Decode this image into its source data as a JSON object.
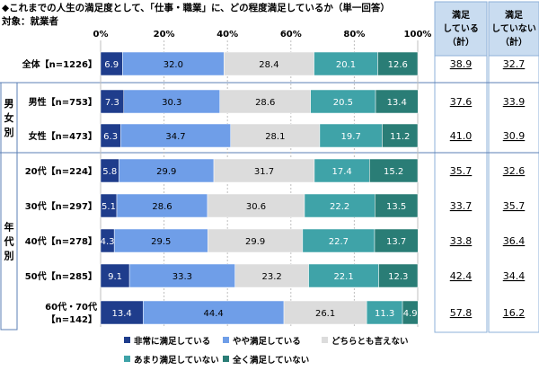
{
  "title": "◆これまでの人生の満足度として、「仕事・職業」に、どの程度満足しているか（単一回答）",
  "subtitle": "対象：就業者",
  "chart_data": {
    "type": "bar",
    "orientation": "horizontal",
    "stacked": true,
    "percent_stacked": true,
    "xlim": [
      0,
      100
    ],
    "x_ticks": [
      "0%",
      "20%",
      "40%",
      "60%",
      "80%",
      "100%"
    ],
    "grid": true,
    "legend_position": "bottom",
    "group_labels": [
      {
        "label": "男女別",
        "rows": [
          1,
          2
        ]
      },
      {
        "label": "年代別",
        "rows": [
          3,
          4,
          5,
          6,
          7
        ]
      }
    ],
    "categories": [
      "全体【n=1226】",
      "男性【n=753】",
      "女性【n=473】",
      "20代【n=224】",
      "30代【n=297】",
      "40代【n=278】",
      "50代【n=285】",
      "60代・70代【n=142】"
    ],
    "series": [
      {
        "name": "非常に満足している",
        "color": "#1f3d8c",
        "values": [
          6.9,
          7.3,
          6.3,
          5.8,
          5.1,
          4.3,
          9.1,
          13.4
        ]
      },
      {
        "name": "やや満足している",
        "color": "#6f9ee8",
        "values": [
          32.0,
          30.3,
          34.7,
          29.9,
          28.6,
          29.5,
          33.3,
          44.4
        ]
      },
      {
        "name": "どちらとも言えない",
        "color": "#dcdcdc",
        "values": [
          28.4,
          28.6,
          28.1,
          31.7,
          30.6,
          29.9,
          23.2,
          26.1
        ]
      },
      {
        "name": "あまり満足していない",
        "color": "#3fa3a8",
        "values": [
          20.1,
          20.5,
          19.7,
          17.4,
          22.2,
          22.7,
          22.1,
          11.3
        ]
      },
      {
        "name": "全く満足していない",
        "color": "#2a7d76",
        "values": [
          12.6,
          13.4,
          11.2,
          15.2,
          13.5,
          13.7,
          12.3,
          4.9
        ]
      }
    ],
    "summary_columns": [
      {
        "header": [
          "満足",
          "している",
          "（計）"
        ],
        "values": [
          "38.9",
          "37.6",
          "41.0",
          "35.7",
          "33.7",
          "33.8",
          "42.4",
          "57.8"
        ]
      },
      {
        "header": [
          "満足",
          "していない",
          "（計）"
        ],
        "values": [
          "32.7",
          "33.9",
          "30.9",
          "32.6",
          "35.7",
          "36.4",
          "34.4",
          "16.2"
        ]
      }
    ]
  }
}
